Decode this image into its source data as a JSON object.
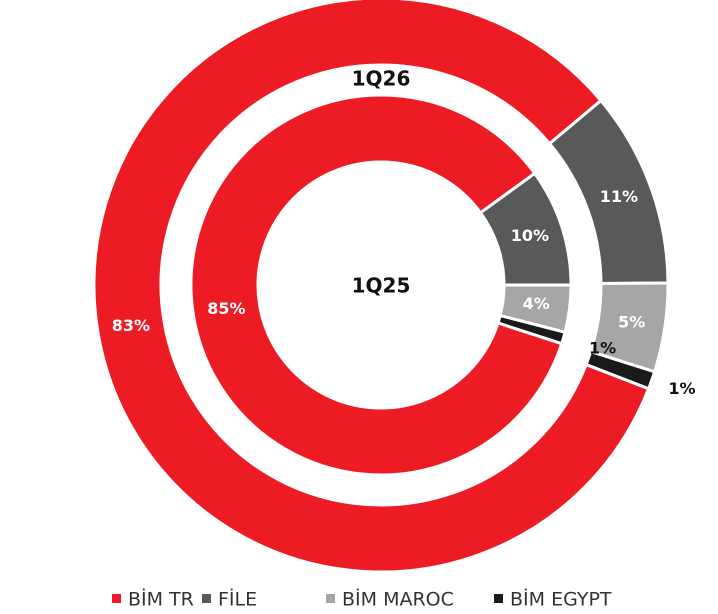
{
  "chart_data": {
    "type": "donut",
    "categories": [
      "BİM TR",
      "FİLE",
      "BİM MAROC",
      "BİM EGYPT"
    ],
    "colors": [
      "#ed1c24",
      "#595959",
      "#a6a6a6",
      "#1a1a1a"
    ],
    "series": [
      {
        "name": "1Q26",
        "values": [
          83,
          11,
          5,
          1
        ],
        "value_labels": [
          "83%",
          "11%",
          "5%",
          "1%"
        ]
      },
      {
        "name": "1Q25",
        "values": [
          85,
          10,
          4,
          1
        ],
        "value_labels": [
          "85%",
          "10%",
          "4%",
          "1%"
        ]
      }
    ],
    "legend": "bottom"
  }
}
